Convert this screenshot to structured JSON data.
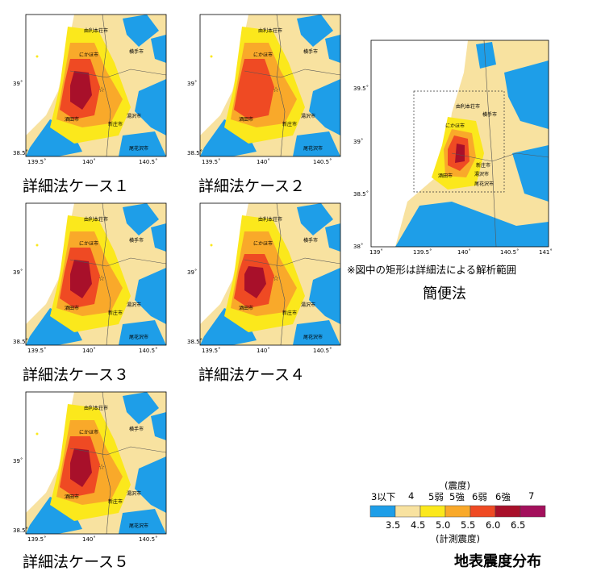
{
  "maps": [
    {
      "id": "case1",
      "caption": "詳細法ケース１",
      "x_ticks": [
        "139.5˚",
        "140˚",
        "140.5˚"
      ],
      "y_ticks": [
        "39˚",
        "38.5˚"
      ],
      "cities": [
        "由利本荘市",
        "にかほ市",
        "横手市",
        "湯沢市",
        "酒田市",
        "新庄市",
        "尾花沢市"
      ]
    },
    {
      "id": "case2",
      "caption": "詳細法ケース２",
      "x_ticks": [
        "139.5˚",
        "140˚",
        "140.5˚"
      ],
      "y_ticks": [
        "39˚",
        "38.5˚"
      ],
      "cities": [
        "由利本荘市",
        "にかほ市",
        "横手市",
        "湯沢市",
        "酒田市",
        "新庄市",
        "尾花沢市"
      ]
    },
    {
      "id": "case3",
      "caption": "詳細法ケース３",
      "x_ticks": [
        "139.5˚",
        "140˚",
        "140.5˚"
      ],
      "y_ticks": [
        "39˚",
        "38.5˚"
      ],
      "cities": [
        "由利本荘市",
        "にかほ市",
        "横手市",
        "湯沢市",
        "酒田市",
        "新庄市",
        "尾花沢市"
      ]
    },
    {
      "id": "case4",
      "caption": "詳細法ケース４",
      "x_ticks": [
        "139.5˚",
        "140˚",
        "140.5˚"
      ],
      "y_ticks": [
        "39˚",
        "38.5˚"
      ],
      "cities": [
        "由利本荘市",
        "にかほ市",
        "横手市",
        "湯沢市",
        "酒田市",
        "新庄市",
        "尾花沢市"
      ]
    },
    {
      "id": "case5",
      "caption": "詳細法ケース５",
      "x_ticks": [
        "139.5˚",
        "140˚",
        "140.5˚"
      ],
      "y_ticks": [
        "39˚",
        "38.5˚"
      ],
      "cities": [
        "由利本荘市",
        "にかほ市",
        "横手市",
        "湯沢市",
        "酒田市",
        "新庄市",
        "尾花沢市"
      ]
    }
  ],
  "simple_map": {
    "caption": "簡便法",
    "note": "※図中の矩形は詳細法による解析範囲",
    "x_ticks": [
      "139˚",
      "139.5˚",
      "140˚",
      "140.5˚",
      "141˚"
    ],
    "y_ticks": [
      "39.5˚",
      "39˚",
      "38.5˚",
      "38˚"
    ],
    "cities": [
      "由利本荘市",
      "にかほ市",
      "横手市",
      "湯沢市",
      "酒田市",
      "新庄市",
      "尾花沢市"
    ]
  },
  "legend": {
    "top_title": "(震度)",
    "intensity_labels": [
      "3以下",
      "4",
      "5弱",
      "5強",
      "6弱",
      "6強",
      "7"
    ],
    "value_labels": [
      "3.5",
      "4.5",
      "5.0",
      "5.5",
      "6.0",
      "6.5"
    ],
    "bottom_title": "(計測震度)",
    "colors": [
      "#1e9ee8",
      "#f8e2a0",
      "#fbe81c",
      "#f9a92a",
      "#ef4a23",
      "#a8102a",
      "#a3105c"
    ],
    "caption": "地表震度分布"
  }
}
